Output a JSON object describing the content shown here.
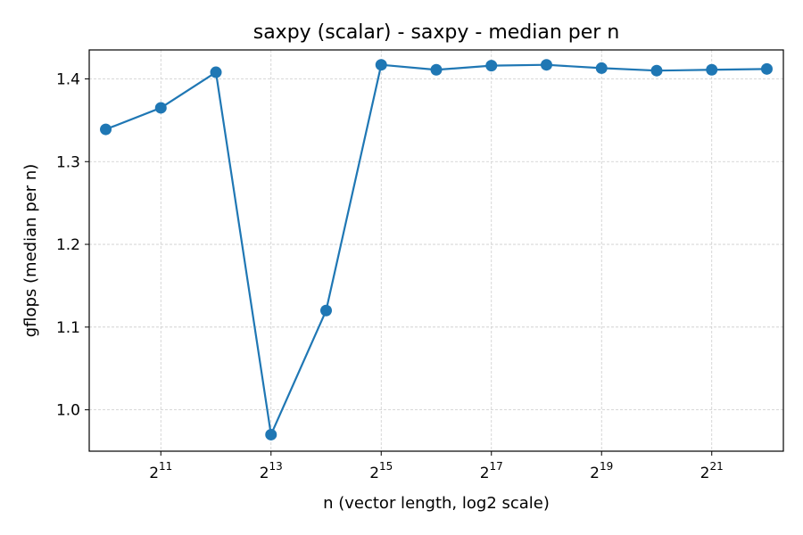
{
  "chart_data": {
    "type": "line",
    "title": "saxpy (scalar) - saxpy - median per n",
    "xlabel": "n (vector length, log2 scale)",
    "ylabel": "gflops (median per n)",
    "x_scale": "log2",
    "x_tick_base": "2",
    "x_tick_exponents": [
      "11",
      "13",
      "15",
      "17",
      "19",
      "21"
    ],
    "y_ticks": [
      "1.0",
      "1.1",
      "1.2",
      "1.3",
      "1.4"
    ],
    "ylim": [
      0.95,
      1.435
    ],
    "xlim_log2": [
      9.7,
      22.3
    ],
    "grid": true,
    "color": "#1f77b4",
    "x": [
      1024,
      2048,
      4096,
      8192,
      16384,
      32768,
      65536,
      131072,
      262144,
      524288,
      1048576,
      2097152,
      4194304
    ],
    "series": [
      {
        "values": [
          1.339,
          1.365,
          1.408,
          0.97,
          1.12,
          1.417,
          1.411,
          1.416,
          1.417,
          1.413,
          1.41,
          1.411,
          1.412
        ]
      }
    ]
  }
}
